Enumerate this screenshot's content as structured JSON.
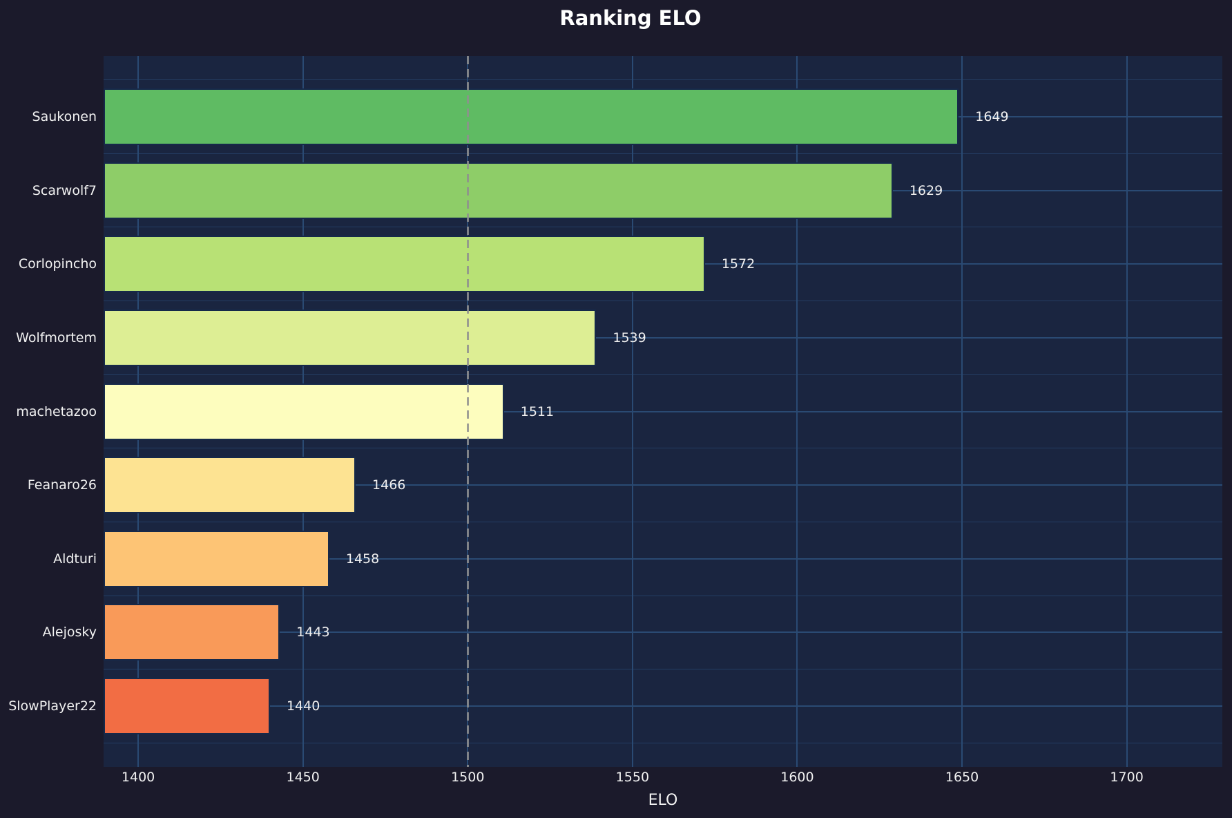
{
  "chart_data": {
    "type": "bar",
    "orientation": "horizontal",
    "title": "Ranking ELO",
    "xlabel": "ELO",
    "categories": [
      "Saukonen",
      "Scarwolf7",
      "Corlopincho",
      "Wolfmortem",
      "machetazoo",
      "Feanaro26",
      "Aldturi",
      "Alejosky",
      "SlowPlayer22"
    ],
    "values": [
      1649,
      1629,
      1572,
      1539,
      1511,
      1466,
      1458,
      1443,
      1440
    ],
    "bar_colors": [
      "#5fbb63",
      "#8ecd68",
      "#b8e175",
      "#ddee94",
      "#fdfdbe",
      "#fde392",
      "#fdc475",
      "#f99a59",
      "#f26d44"
    ],
    "x_ticks": [
      1400,
      1450,
      1500,
      1550,
      1600,
      1650,
      1700
    ],
    "xlim": [
      1389.5,
      1729
    ],
    "grid": true,
    "legend": false,
    "reference_line": {
      "x": 1500,
      "style": "dashed",
      "color": "#8f8f8f"
    }
  },
  "style": {
    "background": "#1b1a2b",
    "plot_background": "#1a2540",
    "grid_color": "#2a4a73",
    "grid_minor_color": "#27436b",
    "bar_edge_color": "#16294a",
    "text_color": "#f2f2f2",
    "title_color": "#ffffff",
    "value_label_color": "#f0f0f0",
    "reference_line_color": "#8f8f8f"
  }
}
